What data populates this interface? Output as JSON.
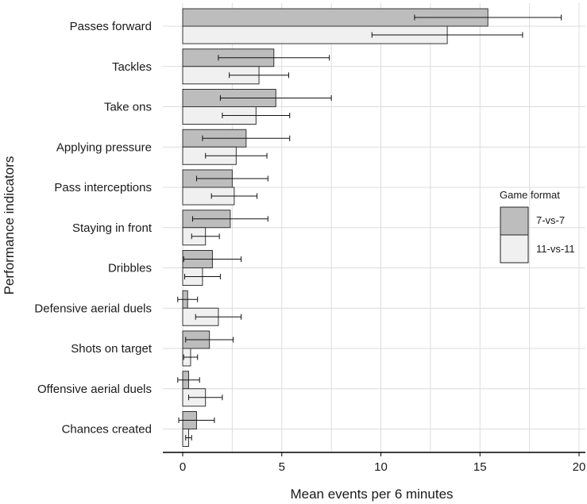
{
  "chart_data": {
    "type": "bar",
    "orientation": "horizontal",
    "xlabel": "Mean events per 6 minutes",
    "ylabel": "Performance indicators",
    "xlim": [
      0,
      20
    ],
    "x_ticks": [
      "0",
      "5",
      "10",
      "15",
      "20"
    ],
    "grid": true,
    "error_bars": true,
    "legend": {
      "title": "Game format",
      "position": "right"
    },
    "categories": [
      "Passes forward",
      "Tackles",
      "Take ons",
      "Applying pressure",
      "Pass interceptions",
      "Staying in front",
      "Dribbles",
      "Defensive aerial duels",
      "Shots on target",
      "Offensive aerial duels",
      "Chances created"
    ],
    "series": [
      {
        "name": "7-vs-7",
        "color": "#bdbdbd",
        "values": [
          15.4,
          4.6,
          4.7,
          3.2,
          2.5,
          2.4,
          1.5,
          0.25,
          1.35,
          0.3,
          0.7
        ],
        "errors": [
          3.7,
          2.8,
          2.8,
          2.2,
          1.8,
          1.9,
          1.45,
          0.5,
          1.2,
          0.55,
          0.9
        ]
      },
      {
        "name": "11-vs-11",
        "color": "#f0f0f0",
        "values": [
          13.35,
          3.85,
          3.7,
          2.7,
          2.6,
          1.15,
          1.0,
          1.8,
          0.4,
          1.15,
          0.3
        ],
        "errors": [
          3.8,
          1.5,
          1.7,
          1.55,
          1.15,
          0.7,
          0.9,
          1.15,
          0.35,
          0.85,
          0.15
        ]
      }
    ]
  }
}
